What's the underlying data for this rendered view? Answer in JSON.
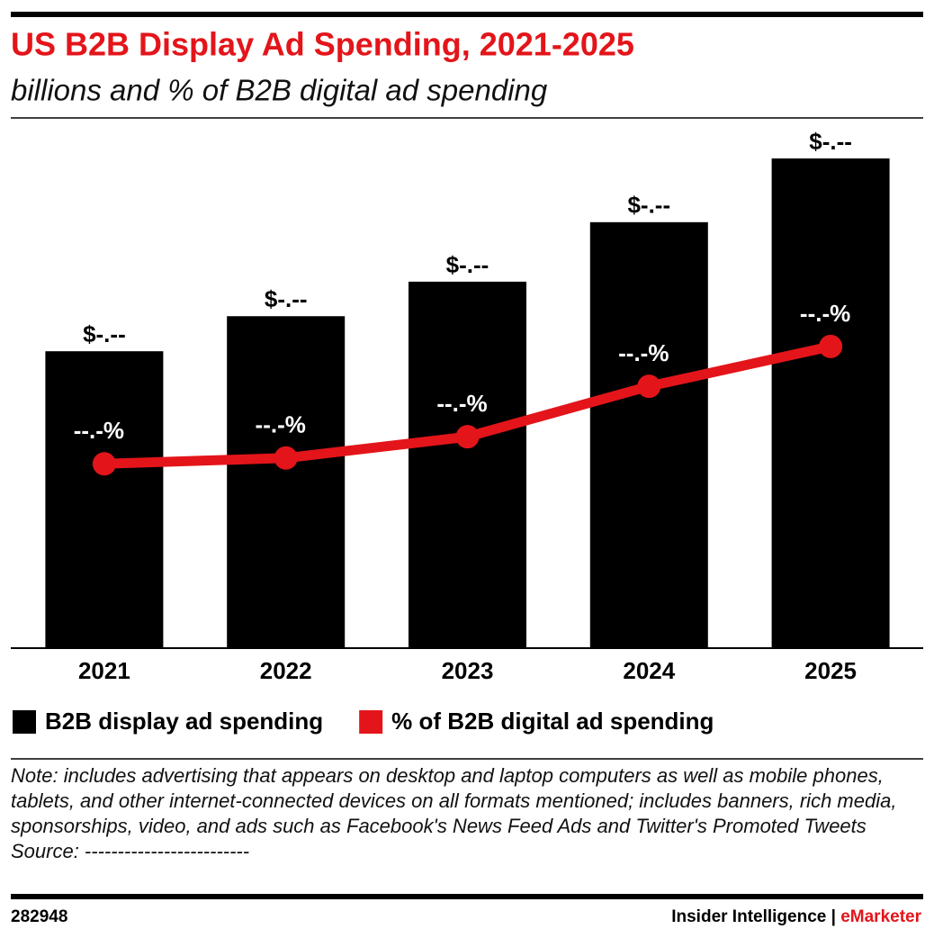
{
  "chart_data": {
    "type": "bar",
    "title": "US B2B Display Ad Spending, 2021-2025",
    "subtitle": "billions and % of B2B digital ad spending",
    "categories": [
      "2021",
      "2022",
      "2023",
      "2024",
      "2025"
    ],
    "series": [
      {
        "name": "B2B display ad spending",
        "type": "bar",
        "color": "#000000",
        "values": [
          5.59,
          6.25,
          6.9,
          8.02,
          9.22
        ],
        "value_labels": [
          "$-.--",
          "$-.--",
          "$-.--",
          "$-.--",
          "$-.--"
        ]
      },
      {
        "name": "% of B2B digital ad spending",
        "type": "line",
        "axis": "y2",
        "color": "#e3151a",
        "values": [
          34.7,
          35.8,
          39.8,
          49.3,
          56.8
        ],
        "value_labels": [
          "--.-%",
          "--.-%",
          "--.-%",
          "--.-%",
          "--.-%"
        ]
      }
    ],
    "ylim": [
      0,
      10
    ],
    "y2lim": [
      0,
      100
    ],
    "legend": "bottom-left"
  },
  "note": "Note: includes advertising that appears on desktop and laptop computers as well as mobile phones, tablets, and other internet-connected devices on all formats mentioned; includes banners, rich media, sponsorships, video, and ads such as Facebook's News Feed Ads and Twitter's Promoted Tweets",
  "source": "Source: -------------------------",
  "footer": {
    "id": "282948",
    "brand": "Insider Intelligence |",
    "brand_highlight": "eMarketer"
  }
}
